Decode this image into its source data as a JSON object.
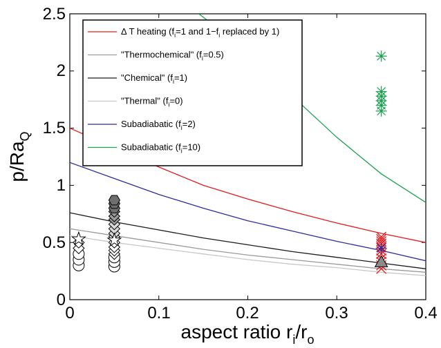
{
  "chart_data": {
    "type": "line",
    "xlabel": {
      "main": "aspect ratio r",
      "sub1": "i",
      "mid": "/r",
      "sub2": "o"
    },
    "ylabel": {
      "main": "p/Ra",
      "sub": "Q"
    },
    "xlim": [
      0,
      0.4
    ],
    "ylim": [
      0,
      2.5
    ],
    "x_ticks": [
      "0",
      "0.1",
      "0.2",
      "0.3",
      "0.4"
    ],
    "y_ticks": [
      "0",
      "0.5",
      "1",
      "1.5",
      "2",
      "2.5"
    ],
    "x_tick_values": [
      0,
      0.1,
      0.2,
      0.3,
      0.4
    ],
    "y_tick_values": [
      0,
      0.5,
      1,
      1.5,
      2,
      2.5
    ],
    "legend_position": "top-left",
    "series": [
      {
        "key": "dt",
        "color": "#e41a1c",
        "label_parts": [
          "Δ T heating (f",
          "i",
          "=1 and 1−f",
          "i",
          " replaced by 1)"
        ],
        "x": [
          0,
          0.05,
          0.1,
          0.15,
          0.2,
          0.25,
          0.3,
          0.35,
          0.4
        ],
        "y": [
          1.5,
          1.33,
          1.16,
          1.0,
          0.88,
          0.77,
          0.67,
          0.58,
          0.5
        ]
      },
      {
        "key": "thermochem",
        "color": "#9a9a9a",
        "label_parts": [
          "\"Thermochemical\" (f",
          "i",
          "=0.5)"
        ],
        "x": [
          0,
          0.05,
          0.1,
          0.15,
          0.2,
          0.25,
          0.3,
          0.35,
          0.4
        ],
        "y": [
          0.62,
          0.56,
          0.5,
          0.44,
          0.39,
          0.35,
          0.31,
          0.27,
          0.24
        ]
      },
      {
        "key": "chem",
        "color": "#1a1a1a",
        "label_parts": [
          "\"Chemical\" (f",
          "i",
          "=1)"
        ],
        "x": [
          0,
          0.05,
          0.1,
          0.15,
          0.2,
          0.25,
          0.3,
          0.35,
          0.4
        ],
        "y": [
          0.76,
          0.68,
          0.61,
          0.54,
          0.48,
          0.42,
          0.37,
          0.32,
          0.27
        ]
      },
      {
        "key": "thermal",
        "color": "#c8c8c8",
        "label_parts": [
          "\"Thermal\" (f",
          "i",
          "=0)"
        ],
        "x": [
          0,
          0.05,
          0.1,
          0.15,
          0.2,
          0.25,
          0.3,
          0.35,
          0.4
        ],
        "y": [
          0.56,
          0.5,
          0.45,
          0.4,
          0.35,
          0.31,
          0.28,
          0.24,
          0.21
        ]
      },
      {
        "key": "sub2",
        "color": "#2b2b9e",
        "label_parts": [
          "Subadiabatic (f",
          "i",
          "=2)"
        ],
        "x": [
          0,
          0.05,
          0.1,
          0.15,
          0.2,
          0.25,
          0.3,
          0.35,
          0.4
        ],
        "y": [
          1.2,
          1.06,
          0.92,
          0.8,
          0.69,
          0.6,
          0.51,
          0.43,
          0.34
        ]
      },
      {
        "key": "sub10",
        "color": "#1aa050",
        "label_parts": [
          "Subadiabatic (f",
          "i",
          "=10)"
        ],
        "x": [
          0.145,
          0.2,
          0.25,
          0.3,
          0.35,
          0.4
        ],
        "y": [
          2.5,
          2.17,
          1.78,
          1.42,
          1.1,
          0.85
        ]
      }
    ],
    "markers": [
      {
        "shape": "circle",
        "fill": "#ffffff",
        "stroke": "#000000",
        "x": 0.01,
        "y": [
          0.3,
          0.35,
          0.4
        ]
      },
      {
        "shape": "diamond",
        "fill": "#ffffff",
        "stroke": "#000000",
        "x": 0.01,
        "y": [
          0.45,
          0.5
        ]
      },
      {
        "shape": "star",
        "fill": "#ffffff",
        "stroke": "#000000",
        "x": 0.01,
        "y": [
          0.53
        ]
      },
      {
        "shape": "circle",
        "fill": "#ffffff",
        "stroke": "#000000",
        "x": 0.05,
        "y": [
          0.29,
          0.33,
          0.37
        ]
      },
      {
        "shape": "diamond",
        "fill": "#ffffff",
        "stroke": "#000000",
        "x": 0.05,
        "y": [
          0.4,
          0.43,
          0.46,
          0.5
        ]
      },
      {
        "shape": "diamond",
        "fill": "#d9d9d9",
        "stroke": "#000000",
        "x": 0.05,
        "y": [
          0.55,
          0.58,
          0.62,
          0.66
        ]
      },
      {
        "shape": "diamond",
        "fill": "#9a9a9a",
        "stroke": "#000000",
        "x": 0.05,
        "y": [
          0.7,
          0.73,
          0.77
        ]
      },
      {
        "shape": "hexagon",
        "fill": "#6e6e6e",
        "stroke": "#000000",
        "x": 0.05,
        "y": [
          0.8,
          0.84,
          0.87
        ]
      },
      {
        "shape": "star",
        "fill": "#ffffff",
        "stroke": "#000000",
        "x": 0.05,
        "y": [
          0.52
        ]
      },
      {
        "shape": "x",
        "fill": "none",
        "stroke": "#e41a1c",
        "x": 0.35,
        "y": [
          0.27,
          0.3,
          0.33,
          0.36,
          0.4,
          0.43,
          0.46,
          0.49,
          0.51,
          0.53,
          0.55
        ]
      },
      {
        "shape": "asterisk",
        "fill": "none",
        "stroke": "#2b2b9e",
        "x": 0.35,
        "y": [
          0.45
        ]
      },
      {
        "shape": "triangle",
        "fill": "#8c8c8c",
        "stroke": "#000000",
        "x": 0.35,
        "y": [
          0.33
        ]
      },
      {
        "shape": "asterisk",
        "fill": "none",
        "stroke": "#1aa050",
        "x": 0.35,
        "y": [
          1.65,
          1.7,
          1.74,
          1.78,
          1.82,
          2.13
        ]
      }
    ]
  }
}
